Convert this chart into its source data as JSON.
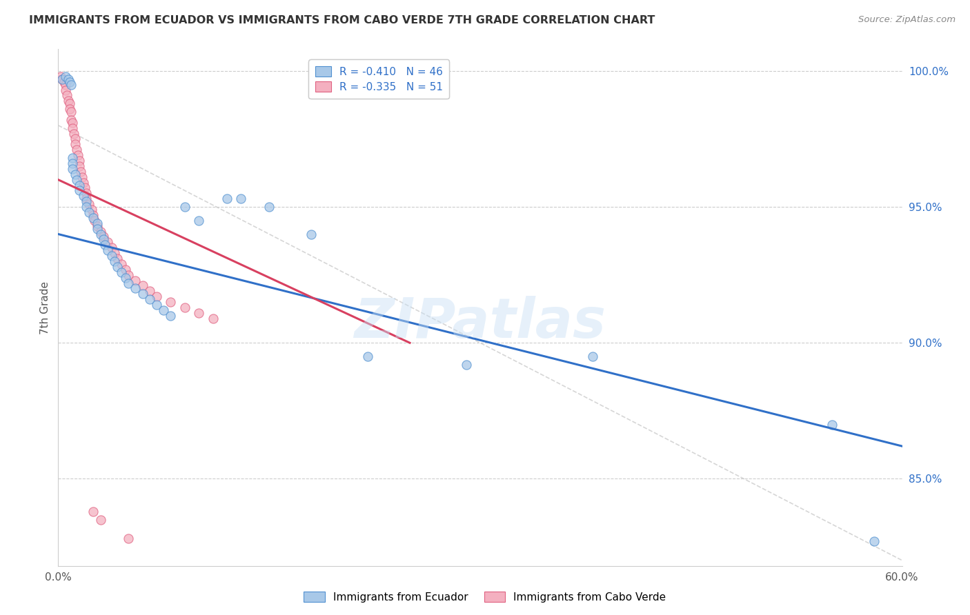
{
  "title": "IMMIGRANTS FROM ECUADOR VS IMMIGRANTS FROM CABO VERDE 7TH GRADE CORRELATION CHART",
  "source": "Source: ZipAtlas.com",
  "ylabel_label": "7th Grade",
  "legend_items": [
    {
      "label": "R = -0.410   N = 46",
      "color": "#a8c8e8"
    },
    {
      "label": "R = -0.335   N = 51",
      "color": "#f4b8c8"
    }
  ],
  "legend_bottom": [
    "Immigrants from Ecuador",
    "Immigrants from Cabo Verde"
  ],
  "ecuador_color": "#a8c8e8",
  "cabo_verde_color": "#f4b0c0",
  "ecuador_edge_color": "#5090d0",
  "cabo_verde_edge_color": "#e06080",
  "ecuador_line_color": "#3070c8",
  "cabo_verde_line_color": "#d84060",
  "background_color": "#ffffff",
  "grid_color": "#cccccc",
  "watermark": "ZIPatlas",
  "xlim": [
    0.0,
    0.6
  ],
  "ylim": [
    0.818,
    1.008
  ],
  "yticks": [
    1.0,
    0.95,
    0.9,
    0.85
  ],
  "ytick_labels": [
    "100.0%",
    "95.0%",
    "90.0%",
    "85.0%"
  ],
  "ecuador_line_x": [
    0.0,
    0.6
  ],
  "ecuador_line_y": [
    0.94,
    0.862
  ],
  "cabo_verde_line_x": [
    0.0,
    0.25
  ],
  "cabo_verde_line_y": [
    0.96,
    0.9
  ],
  "ref_line_x": [
    0.0,
    0.6
  ],
  "ref_line_y": [
    0.98,
    0.82
  ],
  "ecuador_scatter_x": [
    0.003,
    0.005,
    0.007,
    0.008,
    0.009,
    0.01,
    0.01,
    0.01,
    0.012,
    0.013,
    0.015,
    0.015,
    0.018,
    0.02,
    0.02,
    0.022,
    0.025,
    0.028,
    0.028,
    0.03,
    0.032,
    0.033,
    0.035,
    0.038,
    0.04,
    0.042,
    0.045,
    0.048,
    0.05,
    0.055,
    0.06,
    0.065,
    0.07,
    0.075,
    0.08,
    0.09,
    0.1,
    0.12,
    0.13,
    0.15,
    0.18,
    0.22,
    0.29,
    0.38,
    0.58,
    0.55
  ],
  "ecuador_scatter_y": [
    0.997,
    0.998,
    0.997,
    0.996,
    0.995,
    0.968,
    0.966,
    0.964,
    0.962,
    0.96,
    0.958,
    0.956,
    0.954,
    0.952,
    0.95,
    0.948,
    0.946,
    0.944,
    0.942,
    0.94,
    0.938,
    0.936,
    0.934,
    0.932,
    0.93,
    0.928,
    0.926,
    0.924,
    0.922,
    0.92,
    0.918,
    0.916,
    0.914,
    0.912,
    0.91,
    0.95,
    0.945,
    0.953,
    0.953,
    0.95,
    0.94,
    0.895,
    0.892,
    0.895,
    0.827,
    0.87
  ],
  "cabo_verde_scatter_x": [
    0.002,
    0.003,
    0.004,
    0.005,
    0.005,
    0.006,
    0.007,
    0.008,
    0.008,
    0.009,
    0.009,
    0.01,
    0.01,
    0.011,
    0.012,
    0.012,
    0.013,
    0.014,
    0.015,
    0.015,
    0.016,
    0.017,
    0.018,
    0.019,
    0.02,
    0.02,
    0.022,
    0.024,
    0.025,
    0.026,
    0.028,
    0.03,
    0.032,
    0.035,
    0.038,
    0.04,
    0.042,
    0.045,
    0.048,
    0.05,
    0.055,
    0.06,
    0.065,
    0.07,
    0.08,
    0.09,
    0.1,
    0.11,
    0.025,
    0.03,
    0.05
  ],
  "cabo_verde_scatter_y": [
    0.998,
    0.997,
    0.996,
    0.995,
    0.993,
    0.991,
    0.989,
    0.988,
    0.986,
    0.985,
    0.982,
    0.981,
    0.979,
    0.977,
    0.975,
    0.973,
    0.971,
    0.969,
    0.967,
    0.965,
    0.963,
    0.961,
    0.959,
    0.957,
    0.955,
    0.953,
    0.951,
    0.949,
    0.947,
    0.945,
    0.943,
    0.941,
    0.939,
    0.937,
    0.935,
    0.933,
    0.931,
    0.929,
    0.927,
    0.925,
    0.923,
    0.921,
    0.919,
    0.917,
    0.915,
    0.913,
    0.911,
    0.909,
    0.838,
    0.835,
    0.828
  ]
}
